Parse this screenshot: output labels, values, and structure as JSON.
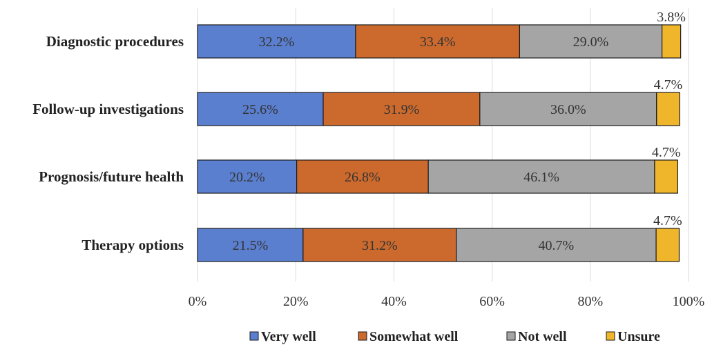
{
  "chart_data": {
    "type": "bar",
    "orientation": "horizontal",
    "stacked": true,
    "categories": [
      "Diagnostic procedures",
      "Follow-up investigations",
      "Prognosis/future health",
      "Therapy options"
    ],
    "series": [
      {
        "name": "Very well",
        "color": "#5b7fcf",
        "values": [
          32.2,
          25.6,
          20.2,
          21.5
        ],
        "labels": [
          "32.2%",
          "25.6%",
          "20.2%",
          "21.5%"
        ]
      },
      {
        "name": "Somewhat well",
        "color": "#cc6a2e",
        "values": [
          33.4,
          31.9,
          26.8,
          31.2
        ],
        "labels": [
          "33.4%",
          "31.9%",
          "26.8%",
          "31.2%"
        ]
      },
      {
        "name": "Not well",
        "color": "#a5a5a5",
        "values": [
          29.0,
          36.0,
          46.1,
          40.7
        ],
        "labels": [
          "29.0%",
          "36.0%",
          "46.1%",
          "40.7%"
        ]
      },
      {
        "name": "Unsure",
        "color": "#f0b62b",
        "values": [
          3.8,
          4.7,
          4.7,
          4.7
        ],
        "labels": [
          "3.8%",
          "4.7%",
          "4.7%",
          "4.7%"
        ]
      }
    ],
    "xlim": [
      0,
      100
    ],
    "xticks": [
      "0%",
      "20%",
      "40%",
      "60%",
      "80%",
      "100%"
    ],
    "grid": true,
    "legend_position": "bottom"
  }
}
